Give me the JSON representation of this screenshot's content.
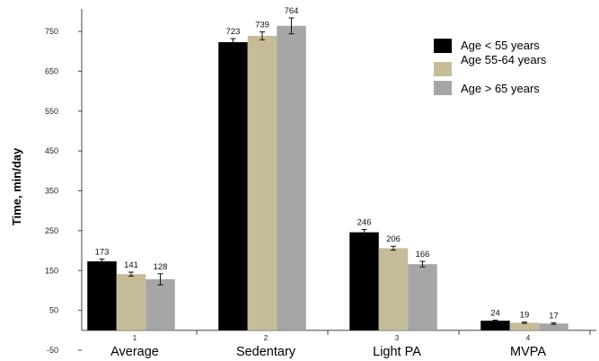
{
  "chart_data": {
    "type": "bar",
    "title": "",
    "xlabel": "",
    "ylabel": "Time, min/day",
    "ylim": [
      -50,
      800
    ],
    "yticks": [
      -50,
      50,
      150,
      250,
      350,
      450,
      550,
      650,
      750
    ],
    "categories": [
      "Average",
      "Sedentary",
      "Light PA",
      "MVPA"
    ],
    "category_numbers": [
      "1",
      "2",
      "3",
      "4"
    ],
    "series": [
      {
        "name": "Age < 55 years",
        "color": "#000000",
        "values": [
          173,
          723,
          246,
          24
        ],
        "errors": [
          6,
          9,
          7,
          1.5
        ]
      },
      {
        "name": "Age 55-64 years",
        "color": "#c6bd98",
        "values": [
          141,
          739,
          206,
          19
        ],
        "errors": [
          5,
          10,
          5,
          1.5
        ]
      },
      {
        "name": "Age > 65 years",
        "color": "#a6a6a7",
        "values": [
          128,
          764,
          166,
          17
        ],
        "errors": [
          14,
          20,
          7,
          2
        ]
      }
    ],
    "legend_position": "top-right",
    "grid": false
  }
}
